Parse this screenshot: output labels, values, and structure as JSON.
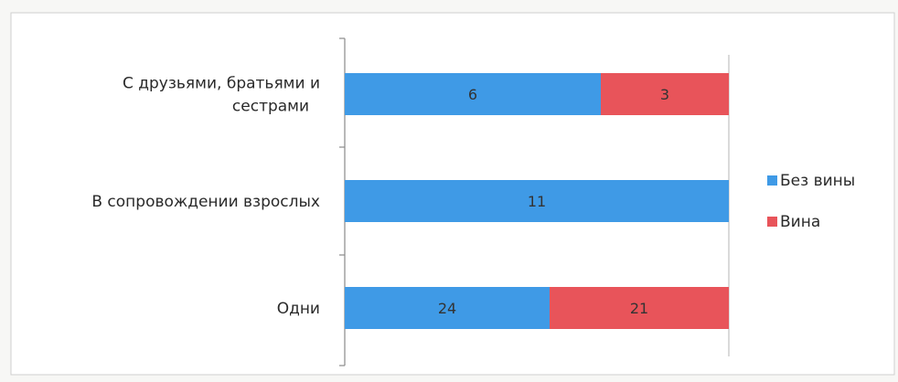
{
  "chart_data": {
    "type": "bar",
    "orientation": "horizontal",
    "stacked": "percent",
    "categories": [
      [
        "С друзьями, братьями и",
        "сестрами"
      ],
      [
        "В сопровождении взрослых"
      ],
      [
        "Одни"
      ]
    ],
    "series": [
      {
        "name": "Без вины",
        "color": "#3f9ae6",
        "values": [
          6,
          11,
          24
        ]
      },
      {
        "name": "Вина",
        "color": "#e8545a",
        "values": [
          3,
          0,
          21
        ]
      }
    ],
    "legend_position": "right",
    "grid": false
  }
}
